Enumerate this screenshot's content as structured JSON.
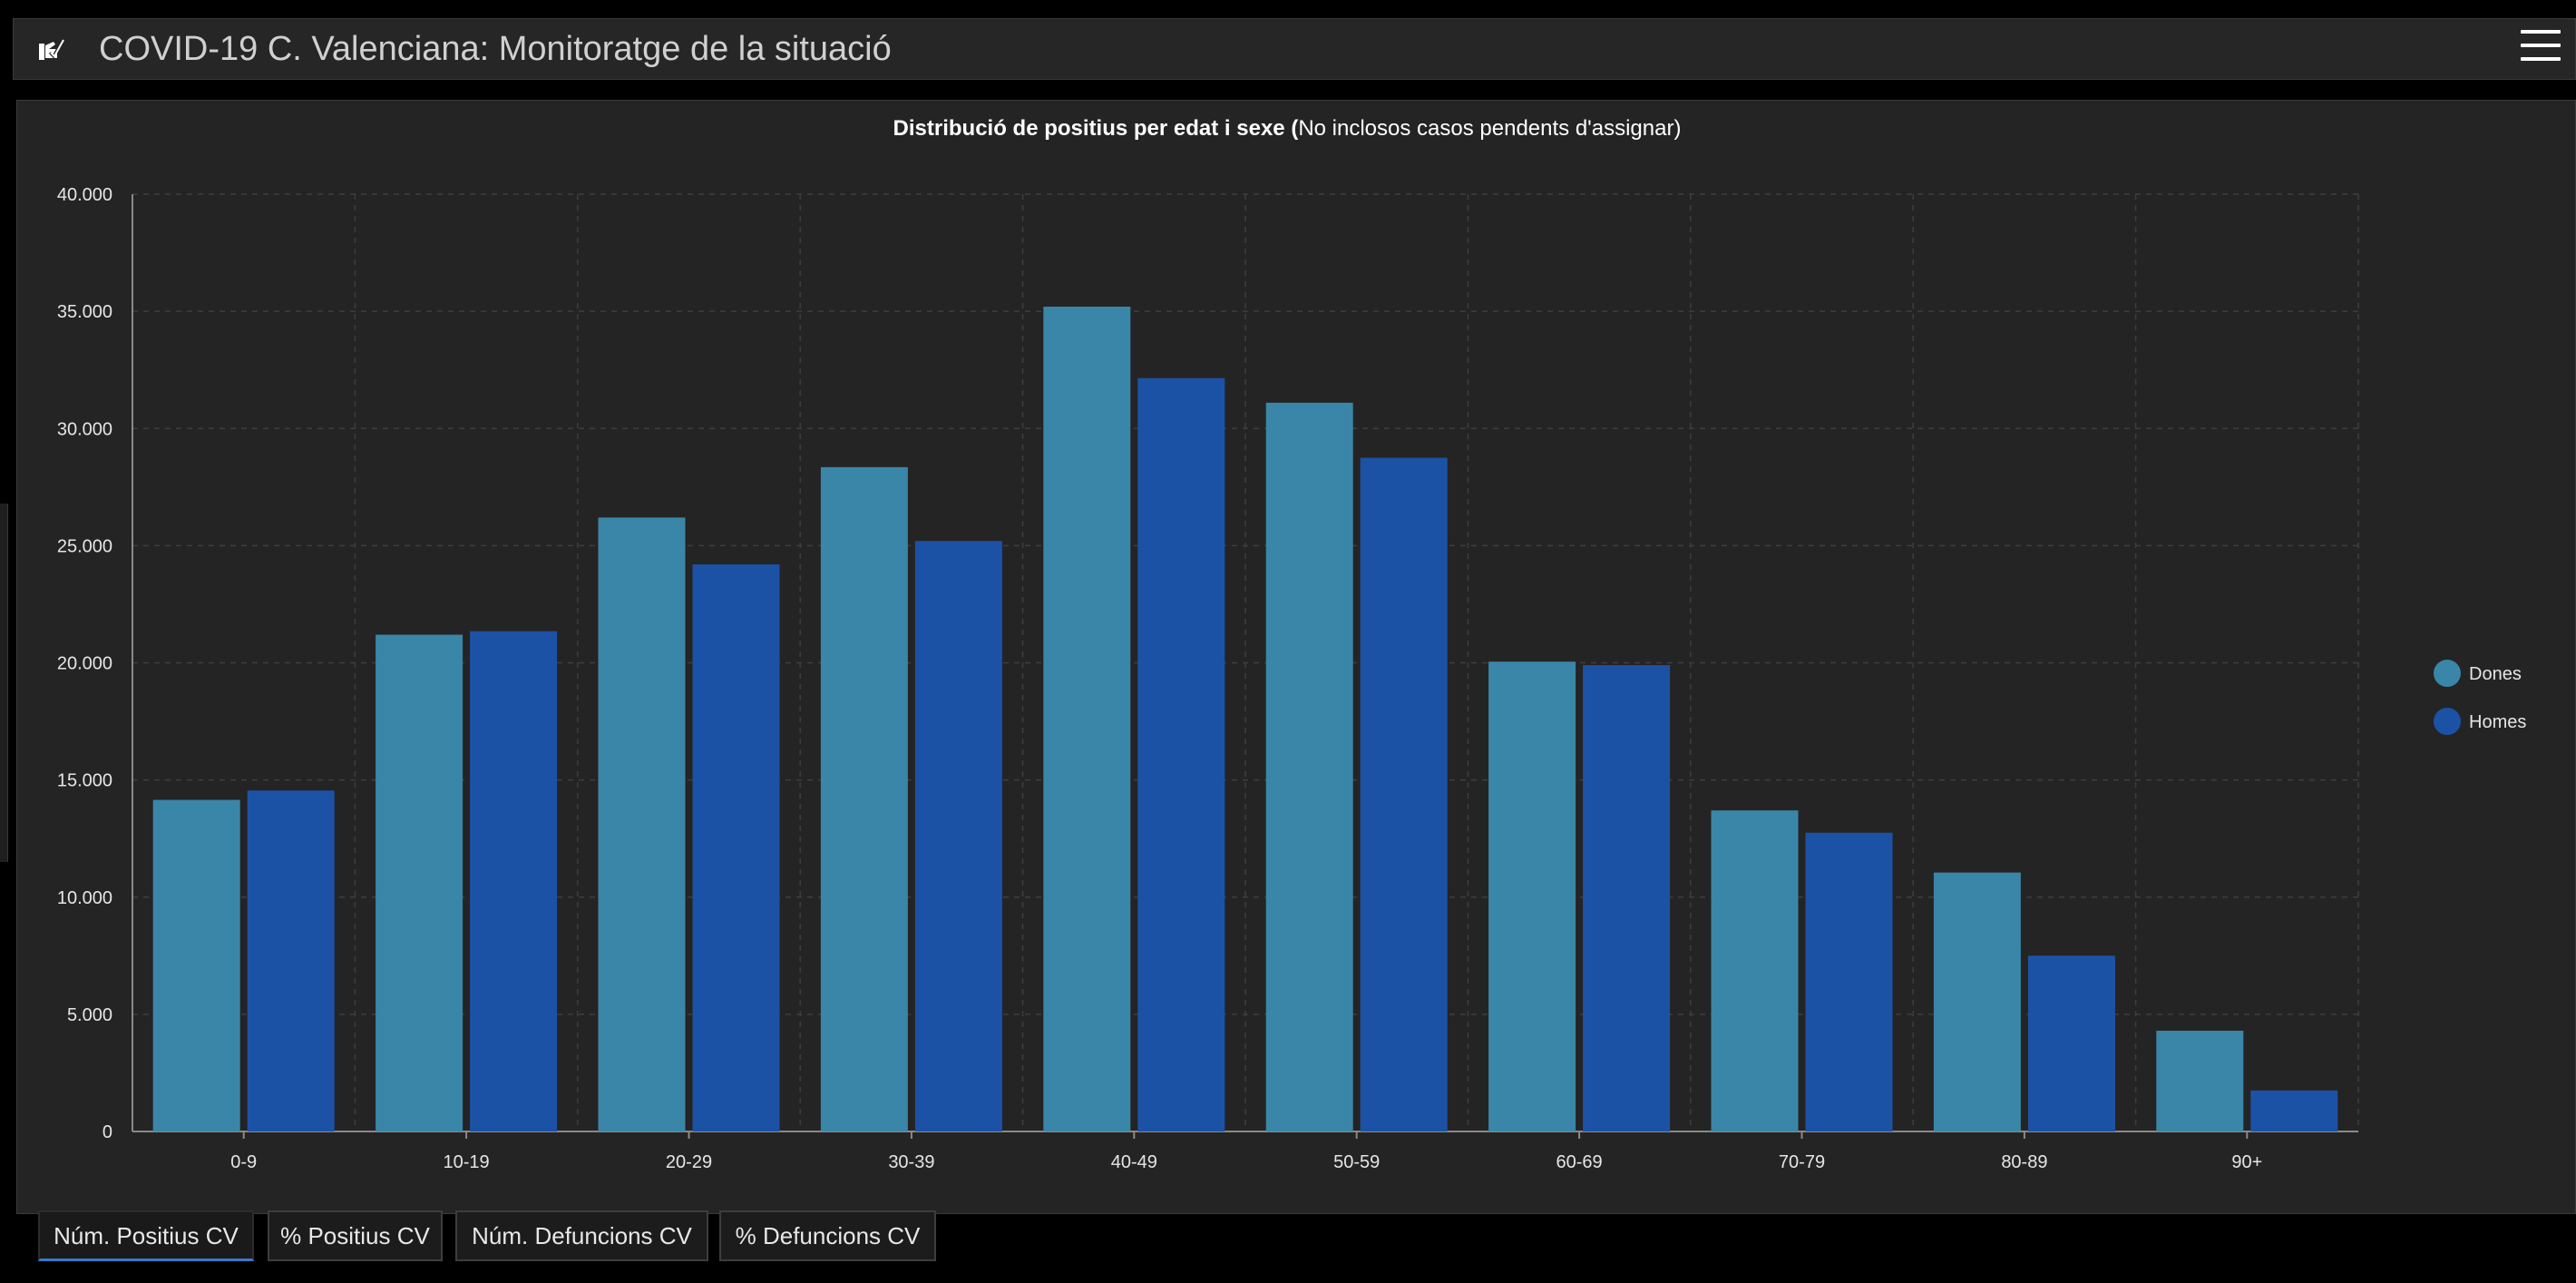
{
  "header": {
    "title": "COVID-19 C. Valenciana: Monitoratge de la situació",
    "logo_icon": "hand-checkmark-icon",
    "menu_icon": "hamburger-menu-icon"
  },
  "chart": {
    "title_bold": "Distribució de positius per edat i sexe (",
    "title_rest": "No inclosos casos pendents d'assignar)"
  },
  "chart_data": {
    "type": "bar",
    "title": "Distribució de positius per edat i sexe (No inclosos casos pendents d'assignar)",
    "categories": [
      "0-9",
      "10-19",
      "20-29",
      "30-39",
      "40-49",
      "50-59",
      "60-69",
      "70-79",
      "80-89",
      "90+"
    ],
    "series": [
      {
        "name": "Dones",
        "color": "#3a86a8",
        "values": [
          14150,
          21200,
          26200,
          28350,
          35200,
          31100,
          20050,
          13700,
          11050,
          4300
        ]
      },
      {
        "name": "Homes",
        "color": "#1c52a6",
        "values": [
          14550,
          21350,
          24200,
          25200,
          32150,
          28750,
          19900,
          12750,
          7500,
          1750
        ]
      }
    ],
    "ylim": [
      0,
      40000
    ],
    "yticks": [
      "0",
      "5.000",
      "10.000",
      "15.000",
      "20.000",
      "25.000",
      "30.000",
      "35.000",
      "40.000"
    ],
    "grid": true,
    "legend_position": "right"
  },
  "tabs": [
    {
      "label": "Núm. Positius CV",
      "active": true
    },
    {
      "label": "% Positius CV",
      "active": false
    },
    {
      "label": "Núm. Defuncions CV",
      "active": false
    },
    {
      "label": "% Defuncions CV",
      "active": false
    }
  ]
}
